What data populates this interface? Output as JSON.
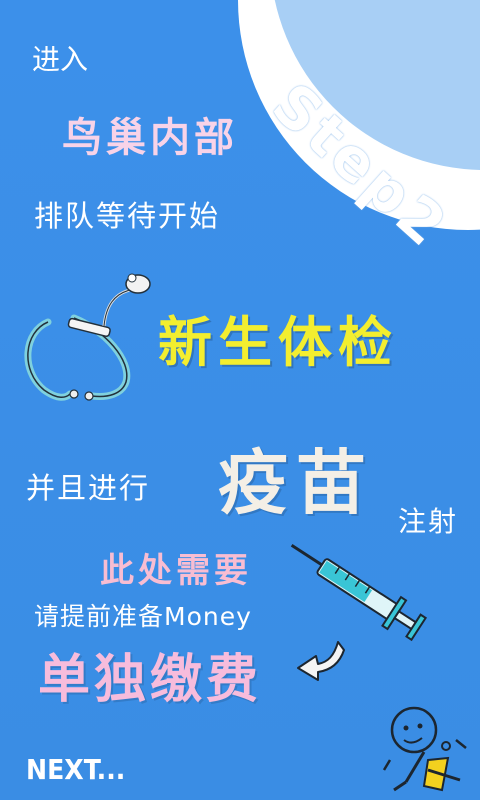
{
  "step": {
    "label": "Step2"
  },
  "lines": {
    "enter": "进入",
    "venue": "鸟巢内部",
    "queue": "排队等待开始",
    "checkup": "新生体检",
    "and_proceed": "并且进行",
    "vaccine": "疫苗",
    "injection": "注射",
    "here_needs": "此处需要",
    "prepare_money": "请提前准备Money",
    "pay_separately": "单独缴费"
  },
  "navigation": {
    "next_label": "NEXT..."
  },
  "icons": {
    "stethoscope": "stethoscope-icon",
    "syringe": "syringe-icon",
    "arrow": "curved-arrow-icon",
    "character": "cartoon-figure-icon"
  },
  "colors": {
    "background": "#3a8ee6",
    "badge_outer": "#ffffff",
    "badge_inner": "#a8cff5",
    "yellow_text": "#f3ee2f",
    "pink_text": "#f8bdd2",
    "cream_text": "#f4efe6"
  }
}
